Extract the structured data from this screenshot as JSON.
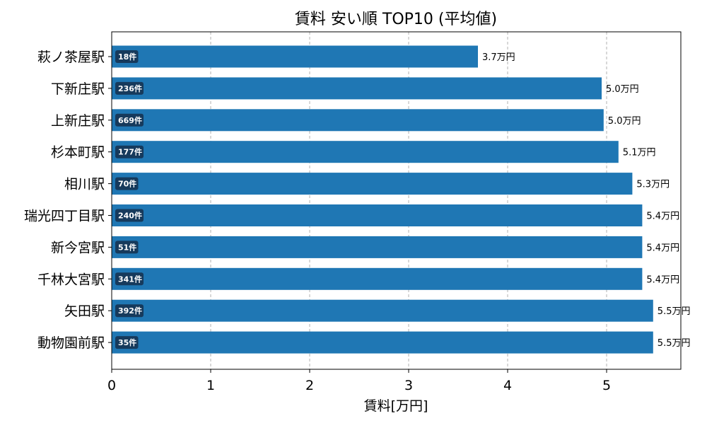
{
  "chart_data": {
    "type": "bar",
    "orientation": "horizontal",
    "title": "賃料 安い順 TOP10 (平均値)",
    "xlabel": "賃料[万円]",
    "ylabel": "",
    "xlim": [
      0,
      5.75
    ],
    "xticks": [
      "0",
      "1",
      "2",
      "3",
      "4",
      "5"
    ],
    "grid": "x",
    "categories": [
      "萩ノ茶屋駅",
      "下新庄駅",
      "上新庄駅",
      "杉本町駅",
      "相川駅",
      "瑞光四丁目駅",
      "新今宮駅",
      "千林大宮駅",
      "矢田駅",
      "動物園前駅"
    ],
    "values": [
      3.7,
      4.95,
      4.97,
      5.12,
      5.26,
      5.36,
      5.36,
      5.36,
      5.47,
      5.47
    ],
    "value_labels": [
      "3.7万円",
      "5.0万円",
      "5.0万円",
      "5.1万円",
      "5.3万円",
      "5.4万円",
      "5.4万円",
      "5.4万円",
      "5.5万円",
      "5.5万円"
    ],
    "count_labels": [
      "18件",
      "236件",
      "669件",
      "177件",
      "70件",
      "240件",
      "51件",
      "341件",
      "392件",
      "35件"
    ],
    "colors": {
      "bar": "#1f77b4",
      "count_badge": "#163a5c"
    }
  }
}
